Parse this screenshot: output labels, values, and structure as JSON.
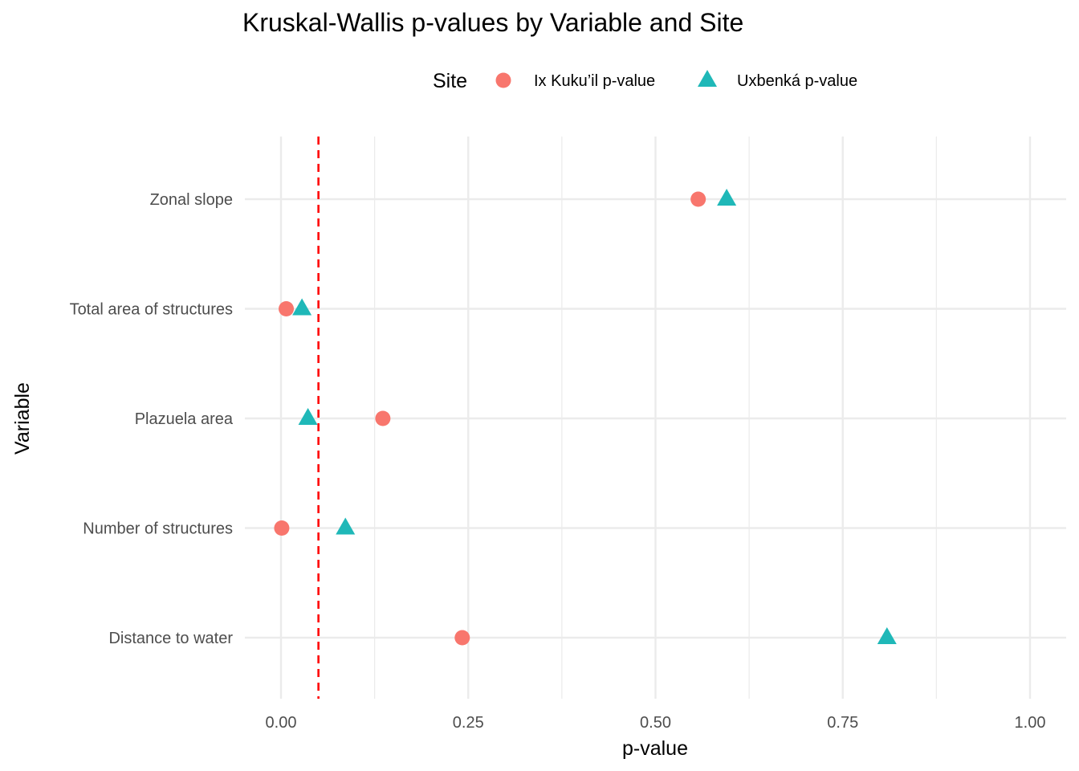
{
  "chart_data": {
    "type": "scatter",
    "title": "Kruskal-Wallis p-values by Variable and Site",
    "xlabel": "p-value",
    "ylabel": "Variable",
    "xlim": [
      -0.01,
      1.01
    ],
    "x_ticks": [
      0,
      0.25,
      0.5,
      0.75,
      1
    ],
    "x_tick_labels": [
      "0.00",
      "0.25",
      "0.50",
      "0.75",
      "1.00"
    ],
    "categories": [
      "Zonal slope",
      "Total area of structures",
      "Plazuela area",
      "Number of structures",
      "Distance to water"
    ],
    "legend_title": "Site",
    "legend_position": "top",
    "grid": true,
    "reference_line": {
      "x": 0.05,
      "color": "#ff0000",
      "style": "dashed"
    },
    "series": [
      {
        "name": "Ix Kuku’il p-value",
        "marker": "circle",
        "color": "#F8766D",
        "values": [
          0.557,
          0.007,
          0.136,
          0.001,
          0.242
        ]
      },
      {
        "name": "Uxbenká p-value",
        "marker": "triangle",
        "color": "#1FB8B8",
        "values": [
          0.595,
          0.028,
          0.036,
          0.086,
          0.809
        ]
      }
    ]
  }
}
